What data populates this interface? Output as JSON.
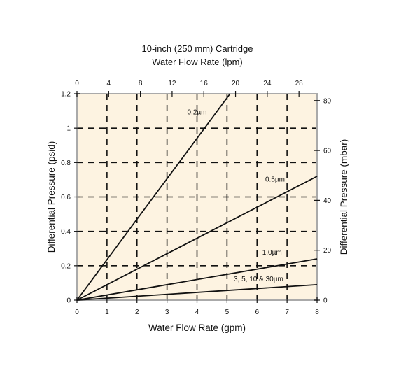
{
  "chart_data": {
    "type": "line",
    "title": "10-inch (250 mm) Cartridge",
    "subtitle": "Water Flow Rate (lpm)",
    "xlabel": "Water Flow Rate (gpm)",
    "ylabel": "Differential Pressure (psid)",
    "y2label": "Differential Pressure (mbar)",
    "xlim": [
      0,
      8
    ],
    "ylim": [
      0,
      1.2
    ],
    "x_ticks": [
      0,
      1,
      2,
      3,
      4,
      5,
      6,
      7,
      8
    ],
    "y_ticks": [
      0,
      0.2,
      0.4,
      0.6,
      0.8,
      1,
      1.2
    ],
    "x2_ticks": [
      0,
      4,
      8,
      12,
      16,
      20,
      24,
      28
    ],
    "x2lim": [
      0,
      30.28
    ],
    "y2_ticks": [
      0,
      20,
      40,
      60,
      80
    ],
    "y2lim": [
      0,
      82.74
    ],
    "grid": true,
    "background": "#fdf3e1",
    "line_color": "#111111",
    "series": [
      {
        "name": "0.2µm",
        "x": [
          0,
          5.1
        ],
        "y": [
          0,
          1.2
        ],
        "label_at": [
          4.0,
          1.08
        ]
      },
      {
        "name": "0.5µm",
        "x": [
          0,
          8
        ],
        "y": [
          0,
          0.72
        ],
        "label_at": [
          6.6,
          0.69
        ]
      },
      {
        "name": "1.0µm",
        "x": [
          0,
          8
        ],
        "y": [
          0,
          0.24
        ],
        "label_at": [
          6.5,
          0.265
        ]
      },
      {
        "name": "3, 5, 10 & 30µm",
        "x": [
          0,
          8
        ],
        "y": [
          0,
          0.09
        ],
        "label_at": [
          6.05,
          0.11
        ]
      }
    ]
  }
}
